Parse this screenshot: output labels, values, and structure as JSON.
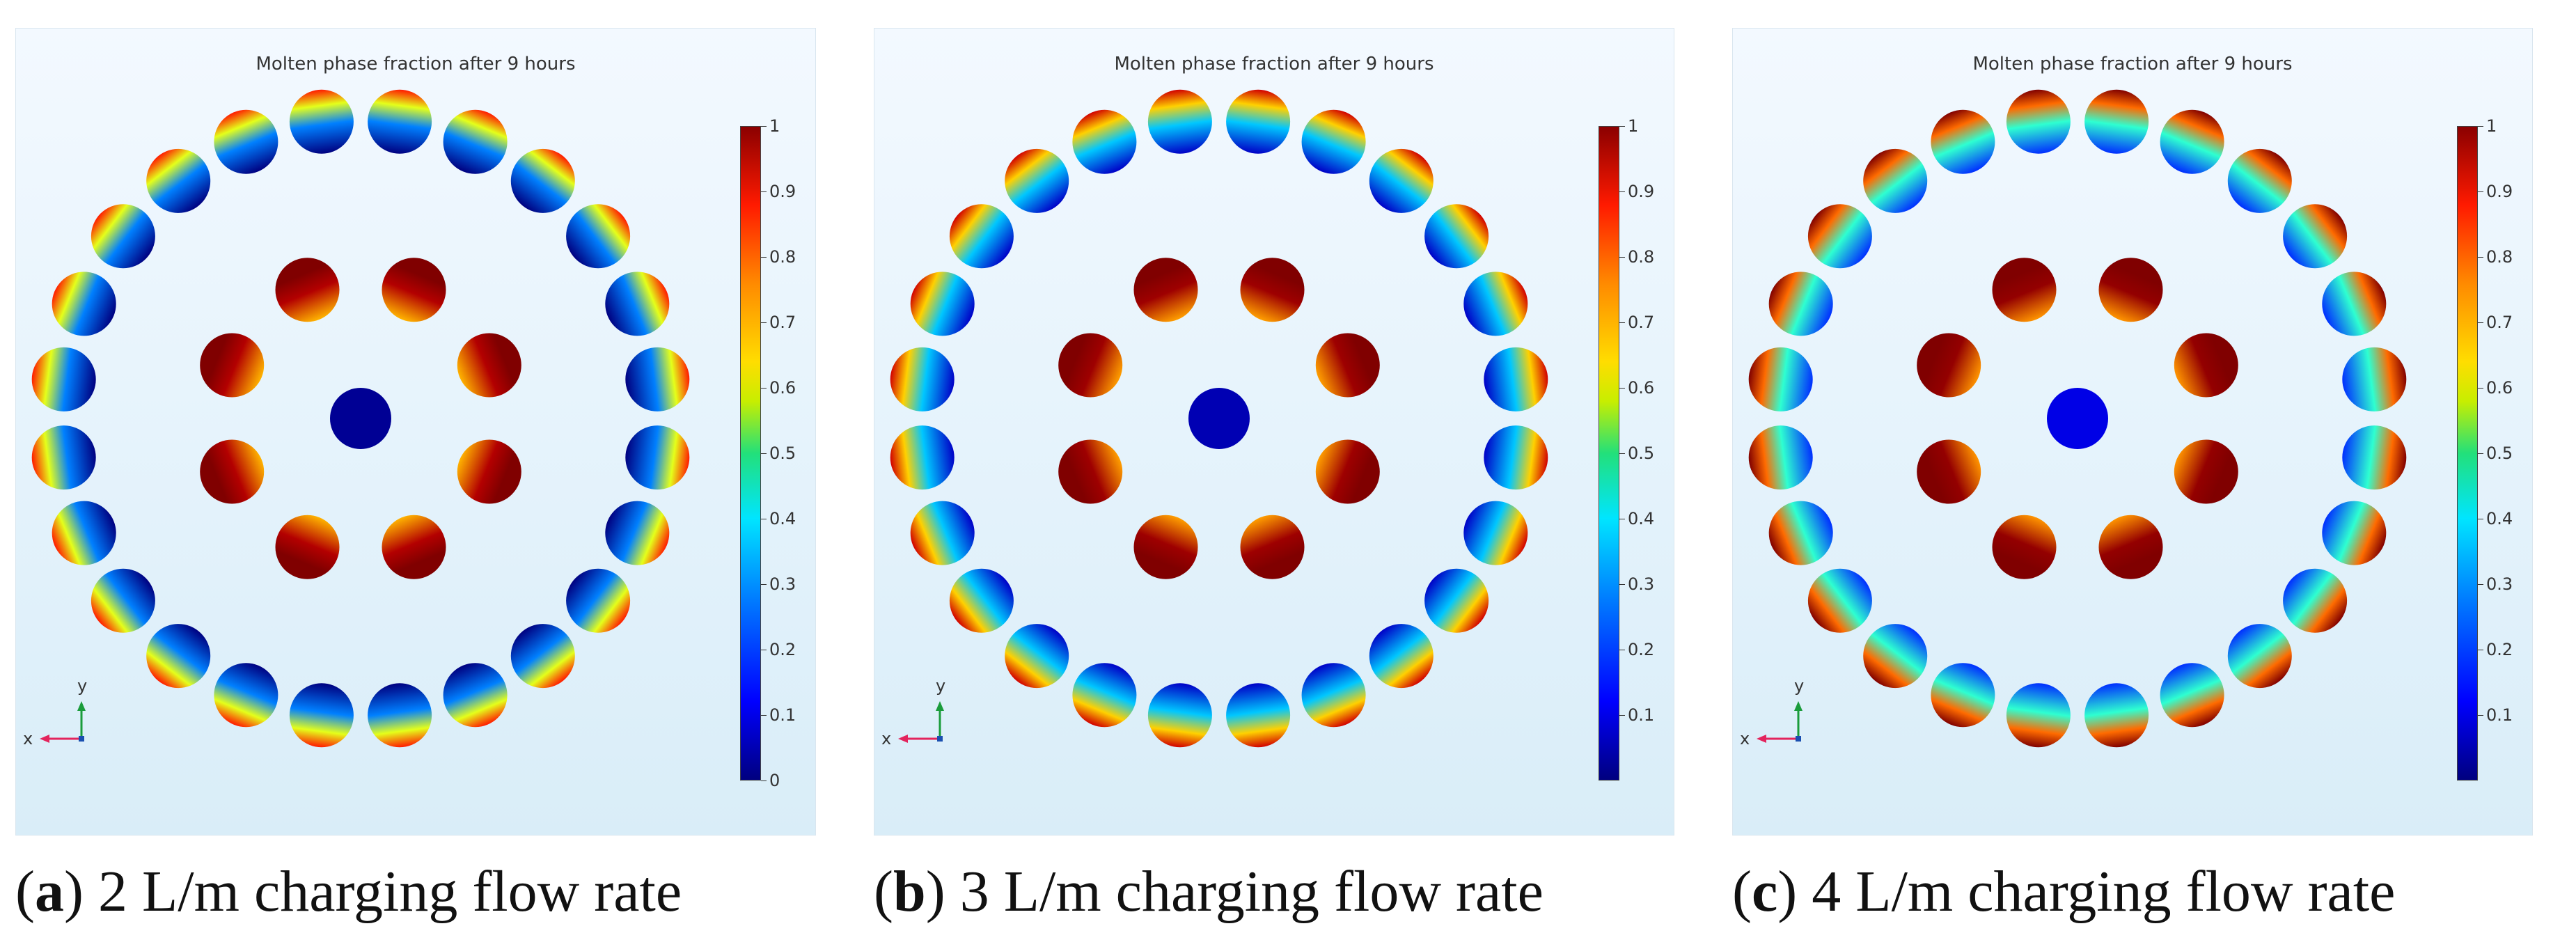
{
  "panels": [
    {
      "id": "a",
      "title": "Molten phase fraction after 9 hours",
      "letter": "a",
      "caption_text": " 2 L/m charging flow rate",
      "colorbar_ticks": [
        "1",
        "0.9",
        "0.8",
        "0.7",
        "0.6",
        "0.5",
        "0.4",
        "0.3",
        "0.2",
        "0.1",
        "0"
      ],
      "axis_x": "x",
      "axis_y": "y",
      "field_levels": {
        "center": 0.02,
        "inner": 0.95,
        "outer": 0.25
      }
    },
    {
      "id": "b",
      "title": "Molten phase fraction after 9 hours",
      "letter": "b",
      "caption_text": " 3 L/m charging flow rate",
      "colorbar_ticks": [
        "1",
        "0.9",
        "0.8",
        "0.7",
        "0.6",
        "0.5",
        "0.4",
        "0.3",
        "0.2",
        "0.1"
      ],
      "axis_x": "x",
      "axis_y": "y",
      "field_levels": {
        "center": 0.05,
        "inner": 0.97,
        "outer": 0.32
      }
    },
    {
      "id": "c",
      "title": "Molten phase fraction after 9 hours",
      "letter": "c",
      "caption_text": " 4 L/m charging flow rate",
      "colorbar_ticks": [
        "1",
        "0.9",
        "0.8",
        "0.7",
        "0.6",
        "0.5",
        "0.4",
        "0.3",
        "0.2",
        "0.1"
      ],
      "axis_x": "x",
      "axis_y": "y",
      "field_levels": {
        "center": 0.1,
        "inner": 0.98,
        "outer": 0.42
      }
    }
  ]
}
